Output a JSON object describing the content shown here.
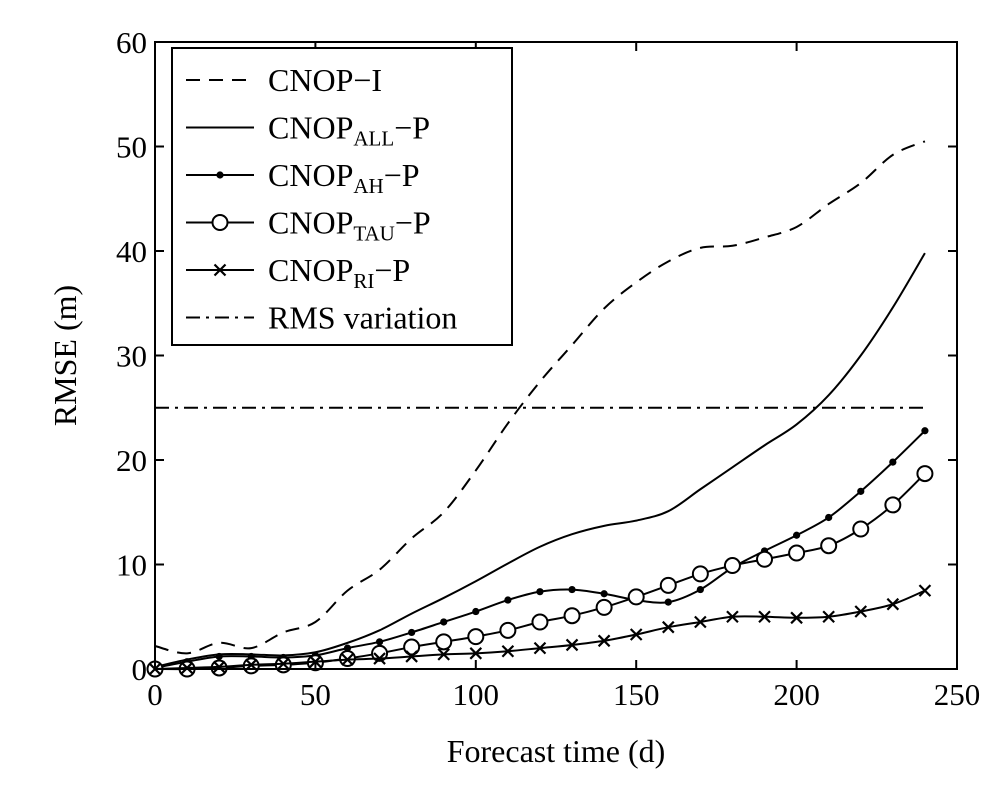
{
  "chart_data": {
    "type": "line",
    "title": "",
    "xlabel": "Forecast time (d)",
    "ylabel": "RMSE (m)",
    "xlim": [
      0,
      250
    ],
    "ylim": [
      0,
      60
    ],
    "xticks": [
      0,
      50,
      100,
      150,
      200,
      250
    ],
    "yticks": [
      0,
      10,
      20,
      30,
      40,
      50,
      60
    ],
    "grid": false,
    "legend_position": "top-left",
    "series": [
      {
        "name": "CNOP−I",
        "name_main": "CNOP",
        "name_sub": "",
        "name_tail": "−I",
        "style": "dashed",
        "marker": "none",
        "x": [
          0,
          10,
          20,
          30,
          40,
          50,
          60,
          70,
          80,
          90,
          100,
          110,
          120,
          130,
          140,
          150,
          160,
          170,
          180,
          190,
          200,
          210,
          220,
          230,
          240
        ],
        "y": [
          2.2,
          1.5,
          2.5,
          2.0,
          3.5,
          4.5,
          7.5,
          9.5,
          12.5,
          15.0,
          19.0,
          23.5,
          27.5,
          31.0,
          34.5,
          37.0,
          39.0,
          40.3,
          40.5,
          41.3,
          42.3,
          44.5,
          46.5,
          49.2,
          50.5
        ]
      },
      {
        "name": "CNOPALL−P",
        "name_main": "CNOP",
        "name_sub": "ALL",
        "name_tail": "−P",
        "style": "solid",
        "marker": "none",
        "x": [
          0,
          10,
          20,
          30,
          40,
          50,
          60,
          70,
          80,
          90,
          100,
          110,
          120,
          130,
          140,
          150,
          160,
          170,
          180,
          190,
          200,
          210,
          220,
          230,
          240
        ],
        "y": [
          0.2,
          0.9,
          1.4,
          1.4,
          1.3,
          1.6,
          2.5,
          3.7,
          5.3,
          6.8,
          8.4,
          10.1,
          11.7,
          12.9,
          13.7,
          14.2,
          15.1,
          17.2,
          19.3,
          21.4,
          23.4,
          26.2,
          30.0,
          34.6,
          39.8
        ]
      },
      {
        "name": "CNOPAH−P",
        "name_main": "CNOP",
        "name_sub": "AH",
        "name_tail": "−P",
        "style": "solid",
        "marker": "dot",
        "x": [
          0,
          10,
          20,
          30,
          40,
          50,
          60,
          70,
          80,
          90,
          100,
          110,
          120,
          130,
          140,
          150,
          160,
          170,
          180,
          190,
          200,
          210,
          220,
          230,
          240
        ],
        "y": [
          0.1,
          0.7,
          1.2,
          1.2,
          1.1,
          1.3,
          2.0,
          2.6,
          3.5,
          4.5,
          5.5,
          6.6,
          7.4,
          7.6,
          7.2,
          6.6,
          6.4,
          7.6,
          9.7,
          11.3,
          12.8,
          14.5,
          17.0,
          19.8,
          22.8
        ]
      },
      {
        "name": "CNOPTAU−P",
        "name_main": "CNOP",
        "name_sub": "TAU",
        "name_tail": "−P",
        "style": "solid",
        "marker": "circle",
        "x": [
          0,
          10,
          20,
          30,
          40,
          50,
          60,
          70,
          80,
          90,
          100,
          110,
          120,
          130,
          140,
          150,
          160,
          170,
          180,
          190,
          200,
          210,
          220,
          230,
          240
        ],
        "y": [
          0.0,
          0.0,
          0.1,
          0.3,
          0.4,
          0.6,
          1.0,
          1.5,
          2.1,
          2.6,
          3.1,
          3.7,
          4.5,
          5.1,
          5.9,
          6.9,
          8.0,
          9.1,
          9.9,
          10.5,
          11.1,
          11.8,
          13.4,
          15.7,
          18.7
        ]
      },
      {
        "name": "CNOPRI−P",
        "name_main": "CNOP",
        "name_sub": "RI",
        "name_tail": "−P",
        "style": "solid",
        "marker": "x",
        "x": [
          0,
          10,
          20,
          30,
          40,
          50,
          60,
          70,
          80,
          90,
          100,
          110,
          120,
          130,
          140,
          150,
          160,
          170,
          180,
          190,
          200,
          210,
          220,
          230,
          240
        ],
        "y": [
          0.0,
          0.1,
          0.2,
          0.4,
          0.5,
          0.7,
          0.9,
          1.0,
          1.2,
          1.4,
          1.5,
          1.7,
          2.0,
          2.3,
          2.7,
          3.3,
          4.0,
          4.5,
          5.0,
          5.0,
          4.9,
          5.0,
          5.5,
          6.2,
          7.5
        ]
      },
      {
        "name": "RMS variation",
        "name_main": "RMS variation",
        "name_sub": "",
        "name_tail": "",
        "style": "dashdot",
        "marker": "none",
        "x": [
          0,
          240
        ],
        "y": [
          25.0,
          25.0
        ]
      }
    ]
  }
}
